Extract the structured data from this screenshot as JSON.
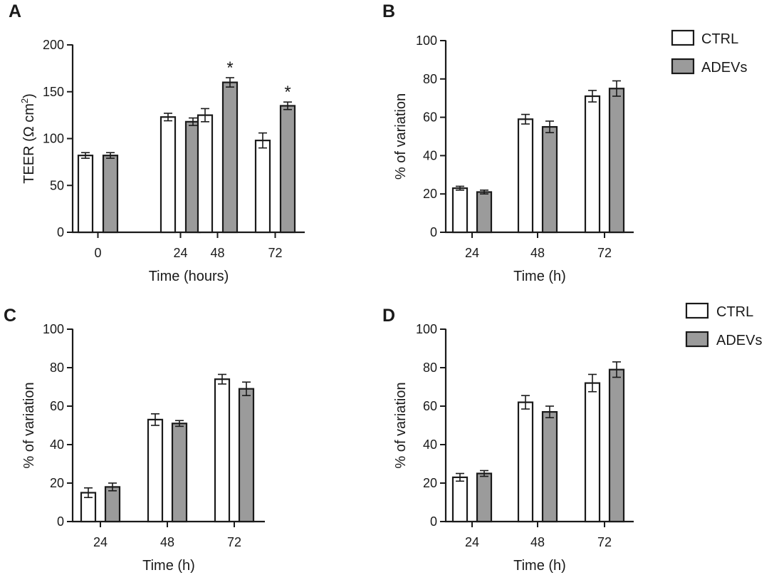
{
  "colors": {
    "CTRL": "#ffffff",
    "ADEVs": "#9b9b9b",
    "stroke": "#1a1a1a"
  },
  "chart_data": [
    {
      "type": "bar",
      "panel": "A",
      "categories": [
        "0",
        "24",
        "48",
        "72"
      ],
      "xlabel": "Time (hours)",
      "ylabel": "TEER (Ω cm",
      "ylabel_sup": "2",
      "ylabel_end": ")",
      "ylim": [
        0,
        200
      ],
      "yticks": [
        "0",
        "50",
        "100",
        "150",
        "200"
      ],
      "legend": "none",
      "series": [
        {
          "name": "CTRL",
          "values": [
            82,
            123,
            125,
            98
          ],
          "errors": [
            3,
            4,
            7,
            8
          ]
        },
        {
          "name": "ADEVs",
          "values": [
            82,
            118,
            160,
            135
          ],
          "errors": [
            3,
            4,
            5,
            4
          ]
        }
      ],
      "annotations": [
        {
          "series": "ADEVs",
          "category": "48",
          "text": "*"
        },
        {
          "series": "ADEVs",
          "category": "72",
          "text": "*"
        }
      ]
    },
    {
      "type": "bar",
      "panel": "B",
      "categories": [
        "24",
        "48",
        "72"
      ],
      "xlabel": "Time (h)",
      "ylabel": "% of variation",
      "ylim": [
        0,
        100
      ],
      "yticks": [
        "0",
        "20",
        "40",
        "60",
        "80",
        "100"
      ],
      "legend": "top-right",
      "series": [
        {
          "name": "CTRL",
          "values": [
            23,
            59,
            71
          ],
          "errors": [
            1,
            2.5,
            3
          ]
        },
        {
          "name": "ADEVs",
          "values": [
            21,
            55,
            75
          ],
          "errors": [
            1,
            3,
            4
          ]
        }
      ],
      "annotations": []
    },
    {
      "type": "bar",
      "panel": "C",
      "categories": [
        "24",
        "48",
        "72"
      ],
      "xlabel": "Time (h)",
      "ylabel": "% of variation",
      "ylim": [
        0,
        100
      ],
      "yticks": [
        "0",
        "20",
        "40",
        "60",
        "80",
        "100"
      ],
      "legend": "none",
      "series": [
        {
          "name": "CTRL",
          "values": [
            15,
            53,
            74
          ],
          "errors": [
            2.5,
            3,
            2.5
          ]
        },
        {
          "name": "ADEVs",
          "values": [
            18,
            51,
            69
          ],
          "errors": [
            2,
            1.5,
            3.5
          ]
        }
      ],
      "annotations": []
    },
    {
      "type": "bar",
      "panel": "D",
      "categories": [
        "24",
        "48",
        "72"
      ],
      "xlabel": "Time (h)",
      "ylabel": "% of variation",
      "ylim": [
        0,
        100
      ],
      "yticks": [
        "0",
        "20",
        "40",
        "60",
        "80",
        "100"
      ],
      "legend": "top-right",
      "series": [
        {
          "name": "CTRL",
          "values": [
            23,
            62,
            72
          ],
          "errors": [
            2,
            3.5,
            4.5
          ]
        },
        {
          "name": "ADEVs",
          "values": [
            25,
            57,
            79
          ],
          "errors": [
            1.5,
            3,
            4
          ]
        }
      ],
      "annotations": []
    }
  ]
}
